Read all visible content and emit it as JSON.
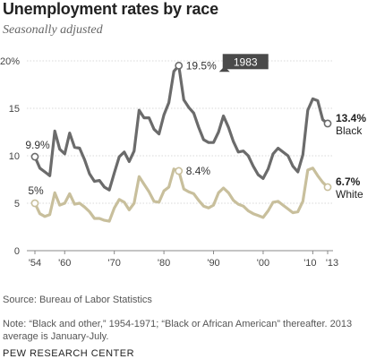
{
  "title": "Unemployment rates by race",
  "subtitle": "Seasonally adjusted",
  "source": "Source: Bureau of Labor Statistics",
  "note": "Note: “Black and other,” 1954-1971; “Black or African American” thereafter. 2013 average is January-July.",
  "brand": "PEW RESEARCH CENTER",
  "colors": {
    "black": "#6b6b6b",
    "white": "#c8bf9c",
    "grid": "#d8d8d8",
    "callout": "#4a4a4a"
  },
  "chart_data": {
    "type": "line",
    "xlabel": "",
    "ylabel": "",
    "xlim": [
      1954,
      2013
    ],
    "ylim": [
      0,
      20
    ],
    "y_ticks": [
      0,
      5,
      10,
      15,
      20
    ],
    "y_tick_labels": [
      "0",
      "5",
      "10",
      "15",
      "20%"
    ],
    "x_ticks": [
      1954,
      1960,
      1970,
      1980,
      1990,
      2000,
      2010,
      2013
    ],
    "x_tick_labels": [
      "'54",
      "'60",
      "'70",
      "'80",
      "'90",
      "'00",
      "'10",
      "'13"
    ],
    "grid": "horizontal dotted",
    "x": [
      1954,
      1955,
      1956,
      1957,
      1958,
      1959,
      1960,
      1961,
      1962,
      1963,
      1964,
      1965,
      1966,
      1967,
      1968,
      1969,
      1970,
      1971,
      1972,
      1973,
      1974,
      1975,
      1976,
      1977,
      1978,
      1979,
      1980,
      1981,
      1982,
      1983,
      1984,
      1985,
      1986,
      1987,
      1988,
      1989,
      1990,
      1991,
      1992,
      1993,
      1994,
      1995,
      1996,
      1997,
      1998,
      1999,
      2000,
      2001,
      2002,
      2003,
      2004,
      2005,
      2006,
      2007,
      2008,
      2009,
      2010,
      2011,
      2012,
      2013
    ],
    "series": [
      {
        "name": "Black",
        "values": [
          9.9,
          8.7,
          8.3,
          7.9,
          12.6,
          10.7,
          10.2,
          12.4,
          10.9,
          10.8,
          9.6,
          8.1,
          7.3,
          7.4,
          6.7,
          6.4,
          8.2,
          9.9,
          10.4,
          9.4,
          10.5,
          14.8,
          14.0,
          14.0,
          12.8,
          12.3,
          14.3,
          15.6,
          18.9,
          19.5,
          15.9,
          15.1,
          14.5,
          13.0,
          11.7,
          11.4,
          11.4,
          12.5,
          14.2,
          13.0,
          11.5,
          10.4,
          10.5,
          10.0,
          8.9,
          8.0,
          7.6,
          8.6,
          10.2,
          10.8,
          10.4,
          10.0,
          8.9,
          8.3,
          10.1,
          14.8,
          16.0,
          15.8,
          13.8,
          13.4
        ]
      },
      {
        "name": "White",
        "values": [
          5.0,
          3.9,
          3.6,
          3.8,
          6.1,
          4.8,
          5.0,
          6.0,
          4.9,
          5.0,
          4.6,
          4.1,
          3.4,
          3.4,
          3.2,
          3.1,
          4.5,
          5.4,
          5.1,
          4.3,
          5.0,
          7.8,
          7.0,
          6.2,
          5.2,
          5.1,
          6.3,
          6.7,
          8.6,
          8.4,
          6.5,
          6.2,
          6.0,
          5.3,
          4.7,
          4.5,
          4.8,
          6.1,
          6.6,
          6.1,
          5.3,
          4.9,
          4.7,
          4.2,
          3.9,
          3.7,
          3.5,
          4.2,
          5.1,
          5.2,
          4.8,
          4.4,
          4.0,
          4.1,
          5.2,
          8.5,
          8.7,
          7.9,
          7.2,
          6.7
        ]
      }
    ],
    "annotations": {
      "start_black": "9.9%",
      "start_white": "5%",
      "peak_black": "19.5%",
      "peak_white": "8.4%",
      "callout": "1983",
      "end_black_value": "13.4%",
      "end_black_label": "Black",
      "end_white_value": "6.7%",
      "end_white_label": "White"
    }
  }
}
